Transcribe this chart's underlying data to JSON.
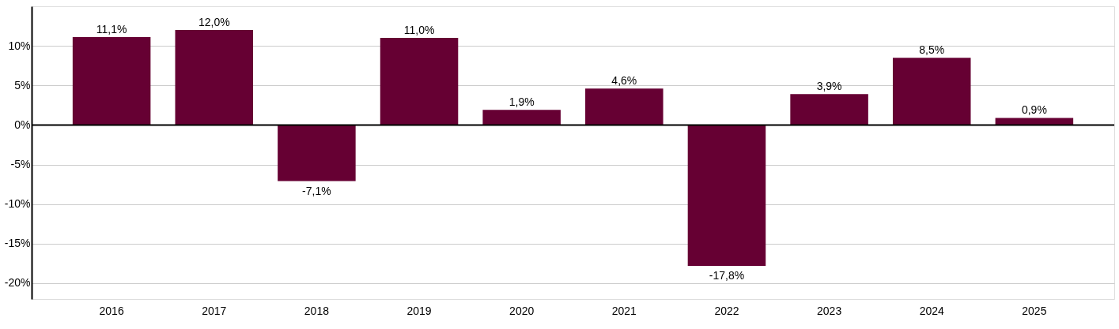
{
  "chart_data": {
    "type": "bar",
    "categories": [
      "2016",
      "2017",
      "2018",
      "2019",
      "2020",
      "2021",
      "2022",
      "2023",
      "2024",
      "2025"
    ],
    "series": [
      {
        "color": "#660033",
        "values": [
          11.1,
          12.0,
          -7.1,
          11.0,
          1.9,
          4.6,
          -17.8,
          3.9,
          8.5,
          0.9
        ],
        "value_labels": [
          "11,1%",
          "12,0%",
          "-7,1%",
          "11,0%",
          "1,9%",
          "4,6%",
          "-17,8%",
          "3,9%",
          "8,5%",
          "0,9%"
        ]
      }
    ],
    "ylim": [
      -22,
      15
    ],
    "yticks": [
      {
        "value": -20,
        "label": "-20%"
      },
      {
        "value": -15,
        "label": "-15%"
      },
      {
        "value": -10,
        "label": "-10%"
      },
      {
        "value": -5,
        "label": "-5%"
      },
      {
        "value": 0,
        "label": "0%"
      },
      {
        "value": 5,
        "label": "5%"
      },
      {
        "value": 10,
        "label": "10%"
      }
    ],
    "grid": "y",
    "ref_lines": [
      {
        "axis": "y",
        "value": 0,
        "color": "#000000"
      }
    ]
  }
}
